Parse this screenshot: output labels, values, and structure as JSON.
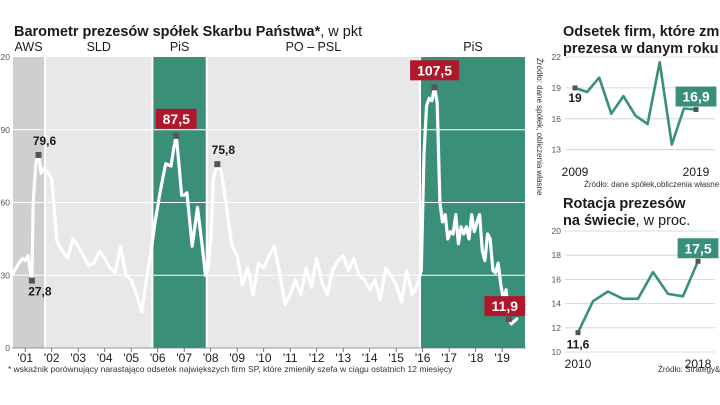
{
  "chart_data": [
    {
      "id": "barometer",
      "type": "line",
      "title": "Barometr prezesów spółek Skarbu Państwa*",
      "unit": ", w pkt",
      "footnote": "* wskaźnik porównujący narastająco odsetek największych firm SP, które zmieniły szefa w ciągu ostatnich 12 miesięcy",
      "source": "Źródło: dane spółek, obliczenia własne",
      "ylim": [
        0,
        120
      ],
      "yticks": [
        "0",
        "30",
        "60",
        "90",
        "120"
      ],
      "xlim": [
        2000.5,
        2019.9
      ],
      "xticks": [
        {
          "label": "'01",
          "x": 2001
        },
        {
          "label": "'02",
          "x": 2002
        },
        {
          "label": "'03",
          "x": 2003
        },
        {
          "label": "'04",
          "x": 2004
        },
        {
          "label": "'05",
          "x": 2005
        },
        {
          "label": "'06",
          "x": 2006
        },
        {
          "label": "'07",
          "x": 2007
        },
        {
          "label": "'08",
          "x": 2008
        },
        {
          "label": "'09",
          "x": 2009
        },
        {
          "label": "'10",
          "x": 2010
        },
        {
          "label": "'11",
          "x": 2011
        },
        {
          "label": "'12",
          "x": 2012
        },
        {
          "label": "'13",
          "x": 2013
        },
        {
          "label": "'14",
          "x": 2014
        },
        {
          "label": "'15",
          "x": 2015
        },
        {
          "label": "'16",
          "x": 2016
        },
        {
          "label": "'17",
          "x": 2017
        },
        {
          "label": "'18",
          "x": 2018
        },
        {
          "label": "'19",
          "x": 2019
        }
      ],
      "eras": [
        {
          "label": "AWS",
          "from": 2000.5,
          "to": 2001.75,
          "color": "#cfcfcf"
        },
        {
          "label": "SLD",
          "from": 2001.75,
          "to": 2005.8,
          "color": "#e8e8e8"
        },
        {
          "label": "PiS",
          "from": 2005.8,
          "to": 2007.85,
          "color": "#3a8f79"
        },
        {
          "label": "PO – PSL",
          "from": 2007.85,
          "to": 2015.9,
          "color": "#e8e8e8"
        },
        {
          "label": "PiS",
          "from": 2015.9,
          "to": 2019.9,
          "color": "#3a8f79"
        }
      ],
      "series": [
        {
          "name": "Barometr",
          "x": [
            2000.5,
            2000.7,
            2000.9,
            2001.0,
            2001.1,
            2001.25,
            2001.3,
            2001.4,
            2001.5,
            2001.6,
            2001.7,
            2001.8,
            2002.0,
            2002.2,
            2002.4,
            2002.6,
            2002.8,
            2003.0,
            2003.2,
            2003.4,
            2003.6,
            2003.8,
            2004.0,
            2004.2,
            2004.4,
            2004.6,
            2004.8,
            2005.0,
            2005.2,
            2005.4,
            2005.6,
            2005.75,
            2005.9,
            2006.1,
            2006.3,
            2006.5,
            2006.6,
            2006.7,
            2006.8,
            2006.9,
            2007.0,
            2007.1,
            2007.3,
            2007.5,
            2007.7,
            2007.8,
            2007.9,
            2008.0,
            2008.1,
            2008.25,
            2008.4,
            2008.6,
            2008.8,
            2009.0,
            2009.2,
            2009.4,
            2009.6,
            2009.8,
            2010.0,
            2010.2,
            2010.4,
            2010.6,
            2010.8,
            2011.0,
            2011.2,
            2011.4,
            2011.6,
            2011.8,
            2012.0,
            2012.2,
            2012.4,
            2012.6,
            2012.8,
            2013.0,
            2013.2,
            2013.4,
            2013.6,
            2013.8,
            2014.0,
            2014.2,
            2014.4,
            2014.6,
            2014.8,
            2015.0,
            2015.2,
            2015.4,
            2015.6,
            2015.8,
            2015.95,
            2016.05,
            2016.15,
            2016.25,
            2016.35,
            2016.45,
            2016.55,
            2016.65,
            2016.75,
            2016.85,
            2016.95,
            2017.05,
            2017.15,
            2017.25,
            2017.35,
            2017.45,
            2017.55,
            2017.65,
            2017.75,
            2017.85,
            2017.95,
            2018.05,
            2018.15,
            2018.25,
            2018.35,
            2018.45,
            2018.55,
            2018.65,
            2018.75,
            2018.85,
            2018.95,
            2019.05,
            2019.15,
            2019.25,
            2019.35,
            2019.45,
            2019.55
          ],
          "values": [
            30,
            34,
            37,
            36,
            38,
            27.8,
            60,
            76,
            79.6,
            72,
            74,
            73,
            70,
            44,
            40,
            37,
            45,
            42,
            38,
            34,
            35,
            40,
            37,
            33,
            31,
            42,
            30,
            28,
            22,
            15,
            30,
            40,
            52,
            65,
            76,
            75,
            82,
            87.5,
            76,
            63,
            63,
            64,
            42,
            58,
            40,
            30,
            33,
            45,
            70,
            75.8,
            73,
            58,
            42,
            38,
            26,
            33,
            22,
            35,
            33,
            38,
            42,
            31,
            18,
            22,
            28,
            22,
            33,
            25,
            37,
            27,
            22,
            32,
            36,
            38,
            32,
            37,
            30,
            28,
            24,
            28,
            20,
            33,
            30,
            26,
            19,
            32,
            22,
            26,
            32,
            80,
            100,
            103,
            102,
            107.5,
            101,
            60,
            52,
            55,
            45,
            48,
            47,
            55,
            43,
            50,
            47,
            50,
            45,
            55,
            48,
            52,
            55,
            40,
            36,
            47,
            45,
            32,
            31,
            35,
            26,
            20,
            24,
            11.9,
            10,
            11,
            12
          ]
        }
      ],
      "labels": [
        {
          "text": "27,8",
          "x": 2001.25,
          "y": 27.8,
          "highlight": false
        },
        {
          "text": "79,6",
          "x": 2001.5,
          "y": 79.6,
          "highlight": false
        },
        {
          "text": "87,5",
          "x": 2006.7,
          "y": 87.5,
          "highlight": true
        },
        {
          "text": "75,8",
          "x": 2008.25,
          "y": 75.8,
          "highlight": false
        },
        {
          "text": "107,5",
          "x": 2016.45,
          "y": 107.5,
          "highlight": true
        },
        {
          "text": "11,9",
          "x": 2019.25,
          "y": 11.9,
          "highlight": true
        }
      ],
      "colors": {
        "line": "#ffffff",
        "marker": "#555555",
        "highlight": "#b0172a",
        "accent": "#3a8f79"
      }
    },
    {
      "id": "ceo-change",
      "type": "line",
      "title": [
        "Odsetek firm, które zmieniły",
        "prezesa w danym roku"
      ],
      "source": "Źródło: dane spółek,obliczenia własne",
      "ylim": [
        12,
        22
      ],
      "yticks": [
        "13",
        "16",
        "19",
        "22"
      ],
      "xticks": [
        "2009",
        "2019"
      ],
      "series": [
        {
          "name": "Odsetek",
          "x": [
            2009,
            2010,
            2011,
            2012,
            2013,
            2014,
            2015,
            2016,
            2017,
            2018,
            2019
          ],
          "values": [
            19.0,
            18.6,
            20.0,
            16.5,
            18.2,
            16.3,
            15.5,
            21.5,
            13.5,
            17.0,
            16.9
          ]
        }
      ],
      "labels": [
        {
          "text": "19",
          "x": 2009,
          "y": 19.0,
          "highlight": false
        },
        {
          "text": "16,9",
          "x": 2019,
          "y": 16.9,
          "highlight": true
        }
      ],
      "colors": {
        "line": "#3a8f79",
        "highlight": "#3a8f79"
      }
    },
    {
      "id": "ceo-rotation-world",
      "type": "line",
      "title": [
        "Rotacja prezesów",
        "na świecie"
      ],
      "unit": ", w proc.",
      "source": "Źródło: Strategy&",
      "ylim": [
        10,
        20
      ],
      "yticks": [
        "10",
        "12",
        "14",
        "16",
        "18",
        "20"
      ],
      "xticks": [
        "2010",
        "2018"
      ],
      "series": [
        {
          "name": "Rotacja",
          "x": [
            2010,
            2011,
            2012,
            2013,
            2014,
            2015,
            2016,
            2017,
            2018
          ],
          "values": [
            11.6,
            14.2,
            15.0,
            14.4,
            14.4,
            16.6,
            14.8,
            14.6,
            17.5
          ]
        }
      ],
      "labels": [
        {
          "text": "11,6",
          "x": 2010,
          "y": 11.6,
          "highlight": false
        },
        {
          "text": "17,5",
          "x": 2018,
          "y": 17.5,
          "highlight": true
        }
      ],
      "colors": {
        "line": "#3a8f79",
        "highlight": "#3a8f79"
      }
    }
  ]
}
